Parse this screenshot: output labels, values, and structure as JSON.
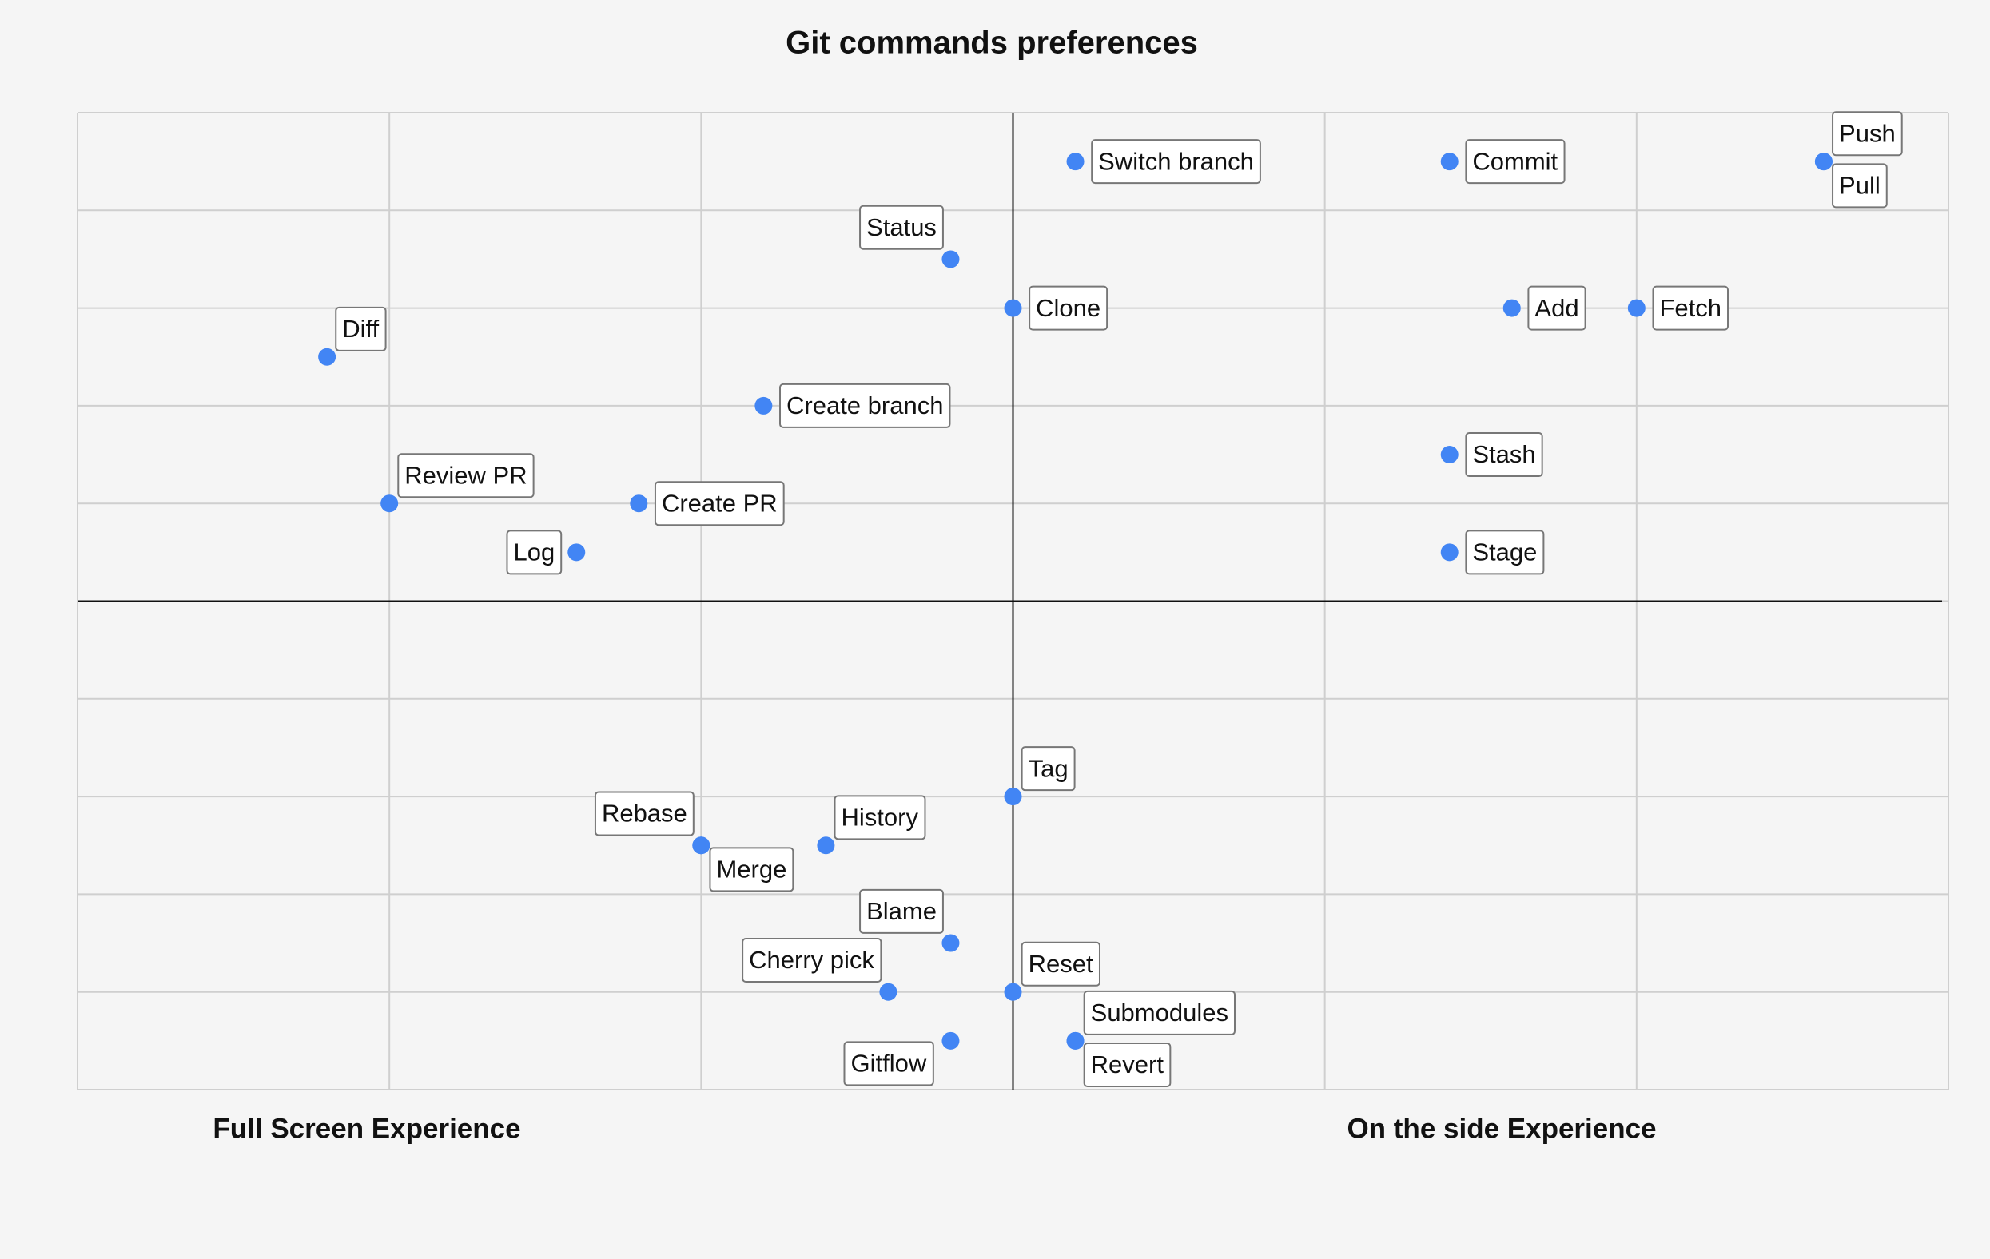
{
  "chart_data": {
    "type": "scatter",
    "title": "Git commands preferences",
    "x_label_left": "Full Screen Experience",
    "x_label_right": "On the side Experience",
    "point_labels": [
      "Switch branch",
      "Commit",
      "Push",
      "Pull",
      "Status",
      "Clone",
      "Add",
      "Fetch",
      "Diff",
      "Create branch",
      "Stash",
      "Review PR",
      "Create PR",
      "Log",
      "Stage",
      "Tag",
      "History",
      "Rebase",
      "Merge",
      "Blame",
      "Cherry pick",
      "Reset",
      "Gitflow",
      "Submodules",
      "Revert"
    ],
    "x": [
      0.2,
      1.4,
      2.6,
      2.6,
      -0.2,
      0,
      1.6,
      2,
      -2.2,
      -0.8,
      1.4,
      -2,
      -1.2,
      -1.4,
      1.4,
      0,
      -0.6,
      -1,
      -1,
      -0.2,
      -0.4,
      0,
      -0.2,
      0.2,
      0.2
    ],
    "series": [
      {
        "color": "#4285f4",
        "values": [
          4.5,
          4.5,
          4.5,
          4.5,
          3.5,
          3,
          3,
          3,
          2.5,
          2,
          1.5,
          1,
          1,
          0.5,
          0.5,
          -2,
          -2.5,
          -2.5,
          -2.5,
          -3.5,
          -4,
          -4,
          -4.5,
          -4.5,
          -4.5
        ]
      }
    ],
    "xlim": [
      -3,
      3
    ],
    "ylim": [
      -5,
      5
    ],
    "xticks": [
      -3,
      -2,
      -1,
      0,
      1,
      2,
      3
    ],
    "yticks": [
      -5,
      -4,
      -3,
      -2,
      -1,
      0,
      1,
      2,
      3,
      4,
      5
    ],
    "grid": true
  }
}
